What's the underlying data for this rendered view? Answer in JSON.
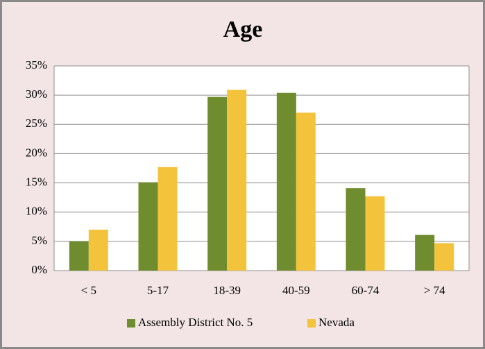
{
  "chart_data": {
    "type": "bar",
    "title": "Age",
    "categories": [
      "< 5",
      "5-17",
      "18-39",
      "40-59",
      "60-74",
      "> 74"
    ],
    "series": [
      {
        "name": "Assembly District No. 5",
        "color": "#6f8c2f",
        "values": [
          5.0,
          15.1,
          29.7,
          30.4,
          14.1,
          6.1
        ]
      },
      {
        "name": "Nevada",
        "color": "#f3c33c",
        "values": [
          7.0,
          17.7,
          30.9,
          27.0,
          12.7,
          4.7
        ]
      }
    ],
    "ylim": [
      0,
      35
    ],
    "yticks": [
      {
        "value": 0,
        "label": "0%"
      },
      {
        "value": 5,
        "label": "5%"
      },
      {
        "value": 10,
        "label": "10%"
      },
      {
        "value": 15,
        "label": "15%"
      },
      {
        "value": 20,
        "label": "20%"
      },
      {
        "value": 25,
        "label": "25%"
      },
      {
        "value": 30,
        "label": "30%"
      },
      {
        "value": 35,
        "label": "35%"
      }
    ],
    "grid": true,
    "legend": "bottom"
  }
}
